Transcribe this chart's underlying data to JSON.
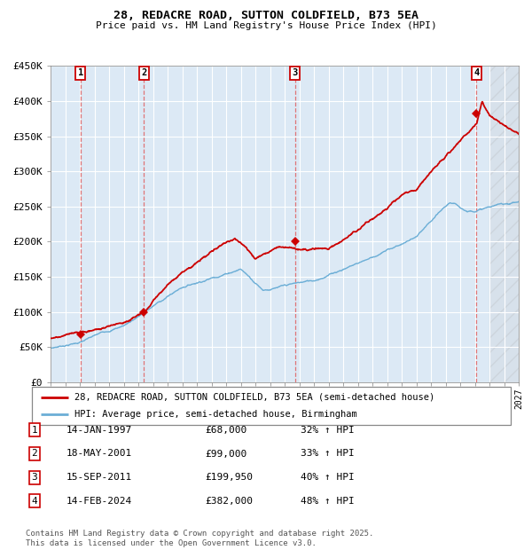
{
  "title": "28, REDACRE ROAD, SUTTON COLDFIELD, B73 5EA",
  "subtitle": "Price paid vs. HM Land Registry's House Price Index (HPI)",
  "bg_color": "#dce9f5",
  "hpi_color": "#6baed6",
  "price_color": "#cc0000",
  "ylim": [
    0,
    450000
  ],
  "ytick_labels": [
    "£0",
    "£50K",
    "£100K",
    "£150K",
    "£200K",
    "£250K",
    "£300K",
    "£350K",
    "£400K",
    "£450K"
  ],
  "ytick_values": [
    0,
    50000,
    100000,
    150000,
    200000,
    250000,
    300000,
    350000,
    400000,
    450000
  ],
  "sales": [
    {
      "num": 1,
      "date_x": 1997.04,
      "price": 68000
    },
    {
      "num": 2,
      "date_x": 2001.38,
      "price": 99000
    },
    {
      "num": 3,
      "date_x": 2011.71,
      "price": 199950
    },
    {
      "num": 4,
      "date_x": 2024.12,
      "price": 382000
    }
  ],
  "legend_line1": "28, REDACRE ROAD, SUTTON COLDFIELD, B73 5EA (semi-detached house)",
  "legend_line2": "HPI: Average price, semi-detached house, Birmingham",
  "footer": "Contains HM Land Registry data © Crown copyright and database right 2025.\nThis data is licensed under the Open Government Licence v3.0.",
  "table_rows": [
    {
      "num": 1,
      "date": "14-JAN-1997",
      "price": "£68,000",
      "pct": "32% ↑ HPI"
    },
    {
      "num": 2,
      "date": "18-MAY-2001",
      "price": "£99,000",
      "pct": "33% ↑ HPI"
    },
    {
      "num": 3,
      "date": "15-SEP-2011",
      "price": "£199,950",
      "pct": "40% ↑ HPI"
    },
    {
      "num": 4,
      "date": "14-FEB-2024",
      "price": "£382,000",
      "pct": "48% ↑ HPI"
    }
  ],
  "xmin": 1995.0,
  "xmax": 2027.0,
  "hatch_start": 2025.0
}
